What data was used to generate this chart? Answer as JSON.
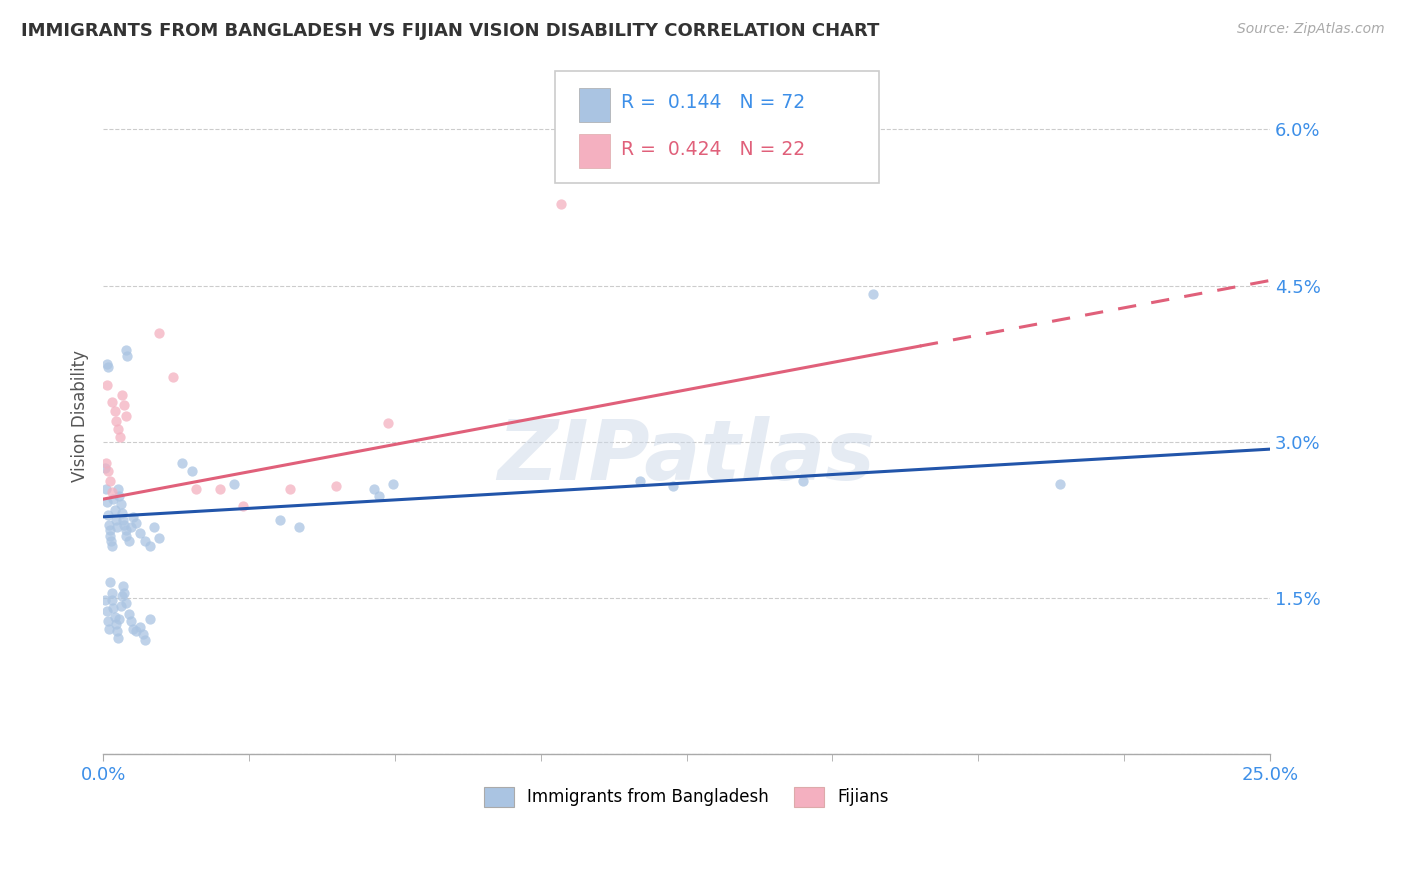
{
  "title": "IMMIGRANTS FROM BANGLADESH VS FIJIAN VISION DISABILITY CORRELATION CHART",
  "source": "Source: ZipAtlas.com",
  "ylabel": "Vision Disability",
  "xmin": 0.0,
  "xmax": 25.0,
  "ymin": 0.0,
  "ymax": 6.5,
  "ytick_vals": [
    0.0,
    1.5,
    3.0,
    4.5,
    6.0
  ],
  "ytick_labels": [
    "",
    "1.5%",
    "3.0%",
    "4.5%",
    "6.0%"
  ],
  "watermark": "ZIPatlas",
  "blue_color": "#aac4e2",
  "pink_color": "#f4b0c0",
  "blue_line_color": "#2255aa",
  "pink_line_color": "#e0607a",
  "scatter_alpha": 0.75,
  "scatter_size": 55,
  "blue_line_x0": 0.0,
  "blue_line_y0": 2.28,
  "blue_line_x1": 25.0,
  "blue_line_y1": 2.93,
  "pink_line_x0": 0.0,
  "pink_line_y0": 2.45,
  "pink_line_x1": 25.0,
  "pink_line_y1": 4.55,
  "pink_solid_end_x": 17.5,
  "blue_points": [
    [
      0.05,
      2.75
    ],
    [
      0.07,
      2.55
    ],
    [
      0.09,
      2.42
    ],
    [
      0.1,
      2.3
    ],
    [
      0.12,
      2.2
    ],
    [
      0.14,
      2.15
    ],
    [
      0.15,
      2.1
    ],
    [
      0.17,
      2.05
    ],
    [
      0.2,
      2.0
    ],
    [
      0.22,
      2.45
    ],
    [
      0.25,
      2.35
    ],
    [
      0.28,
      2.25
    ],
    [
      0.3,
      2.18
    ],
    [
      0.32,
      2.55
    ],
    [
      0.35,
      2.48
    ],
    [
      0.38,
      2.4
    ],
    [
      0.4,
      2.32
    ],
    [
      0.42,
      2.25
    ],
    [
      0.45,
      2.2
    ],
    [
      0.48,
      2.15
    ],
    [
      0.5,
      2.1
    ],
    [
      0.55,
      2.05
    ],
    [
      0.6,
      2.18
    ],
    [
      0.65,
      2.28
    ],
    [
      0.7,
      2.22
    ],
    [
      0.8,
      2.12
    ],
    [
      0.9,
      2.05
    ],
    [
      1.0,
      2.0
    ],
    [
      0.08,
      3.75
    ],
    [
      0.1,
      3.72
    ],
    [
      0.5,
      3.88
    ],
    [
      0.52,
      3.82
    ],
    [
      0.05,
      1.48
    ],
    [
      0.08,
      1.38
    ],
    [
      0.1,
      1.28
    ],
    [
      0.12,
      1.2
    ],
    [
      0.15,
      1.65
    ],
    [
      0.18,
      1.55
    ],
    [
      0.2,
      1.48
    ],
    [
      0.22,
      1.4
    ],
    [
      0.25,
      1.32
    ],
    [
      0.28,
      1.25
    ],
    [
      0.3,
      1.18
    ],
    [
      0.32,
      1.12
    ],
    [
      0.35,
      1.3
    ],
    [
      0.38,
      1.42
    ],
    [
      0.4,
      1.52
    ],
    [
      0.42,
      1.62
    ],
    [
      0.45,
      1.55
    ],
    [
      0.5,
      1.45
    ],
    [
      0.55,
      1.35
    ],
    [
      0.6,
      1.28
    ],
    [
      0.65,
      1.2
    ],
    [
      0.7,
      1.18
    ],
    [
      0.8,
      1.22
    ],
    [
      0.85,
      1.15
    ],
    [
      0.9,
      1.1
    ],
    [
      1.0,
      1.3
    ],
    [
      1.1,
      2.18
    ],
    [
      1.2,
      2.08
    ],
    [
      1.7,
      2.8
    ],
    [
      1.9,
      2.72
    ],
    [
      2.8,
      2.6
    ],
    [
      3.8,
      2.25
    ],
    [
      4.2,
      2.18
    ],
    [
      5.8,
      2.55
    ],
    [
      5.9,
      2.48
    ],
    [
      6.2,
      2.6
    ],
    [
      11.5,
      2.62
    ],
    [
      12.2,
      2.58
    ],
    [
      15.0,
      2.62
    ],
    [
      16.5,
      4.42
    ],
    [
      20.5,
      2.6
    ]
  ],
  "pink_points": [
    [
      0.06,
      2.8
    ],
    [
      0.1,
      2.72
    ],
    [
      0.14,
      2.62
    ],
    [
      0.18,
      2.52
    ],
    [
      0.25,
      3.3
    ],
    [
      0.28,
      3.2
    ],
    [
      0.32,
      3.12
    ],
    [
      0.36,
      3.05
    ],
    [
      0.4,
      3.45
    ],
    [
      0.45,
      3.35
    ],
    [
      0.5,
      3.25
    ],
    [
      0.08,
      3.55
    ],
    [
      1.2,
      4.05
    ],
    [
      1.5,
      3.62
    ],
    [
      2.0,
      2.55
    ],
    [
      2.5,
      2.55
    ],
    [
      3.0,
      2.38
    ],
    [
      4.0,
      2.55
    ],
    [
      5.0,
      2.58
    ],
    [
      9.8,
      5.28
    ],
    [
      6.1,
      3.18
    ],
    [
      0.18,
      3.38
    ]
  ]
}
